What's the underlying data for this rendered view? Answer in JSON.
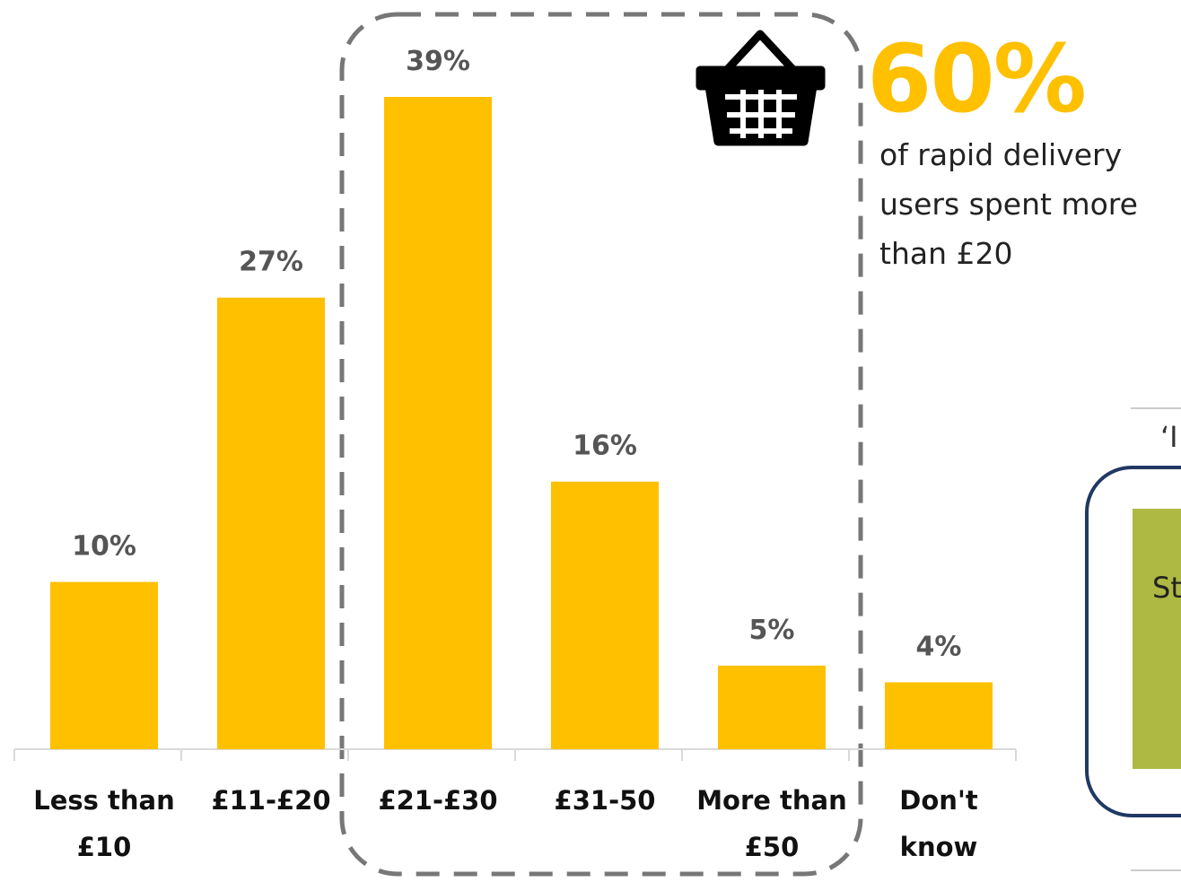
{
  "chart_data": {
    "type": "bar",
    "categories": [
      "Less than £10",
      "£11-£20",
      "£21-£30",
      "£31-50",
      "More than £50",
      "Don't know"
    ],
    "values": [
      10,
      27,
      39,
      16,
      5,
      4
    ],
    "value_labels": [
      "10%",
      "27%",
      "39%",
      "16%",
      "5%",
      "4%"
    ],
    "color": "#ffc000",
    "annotation": {
      "value": "60%",
      "text": "of rapid delivery users spent more than £20"
    },
    "side_panel": {
      "quote": "‘I",
      "box_text": "St"
    }
  }
}
